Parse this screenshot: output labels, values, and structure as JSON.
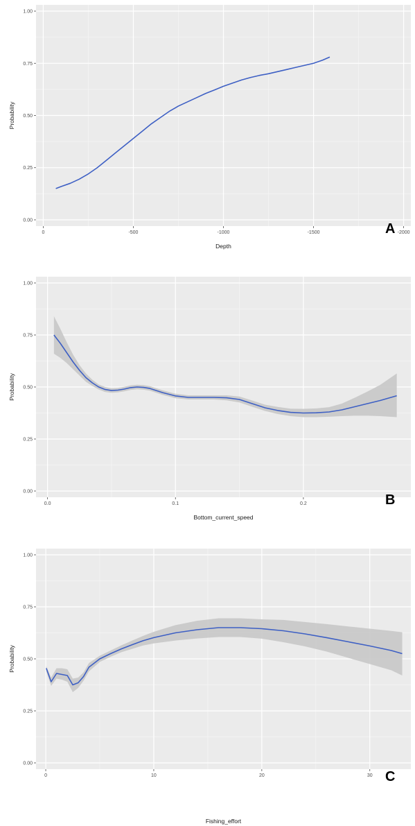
{
  "colors": {
    "panel_bg": "#ebebeb",
    "grid_major": "#ffffff",
    "grid_minor": "#f5f5f5",
    "line": "#3d5fc4",
    "ribbon": "#c8c8c8"
  },
  "chart_data": [
    {
      "type": "line",
      "panel_label": "A",
      "xlabel": "Depth",
      "ylabel": "Probability",
      "xlim": [
        40,
        -2040
      ],
      "ylim": [
        -0.03,
        1.03
      ],
      "xticks": [
        0,
        -500,
        -1000,
        -1500,
        -2000
      ],
      "xtick_labels": [
        "0",
        "-500",
        "-1000",
        "-1500",
        "-2000"
      ],
      "yticks": [
        0,
        0.25,
        0.5,
        0.75,
        1.0
      ],
      "ytick_labels": [
        "0.00",
        "0.25",
        "0.50",
        "0.75",
        "1.00"
      ],
      "x": [
        -70,
        -100,
        -150,
        -200,
        -250,
        -300,
        -350,
        -400,
        -450,
        -500,
        -550,
        -600,
        -650,
        -700,
        -750,
        -800,
        -850,
        -900,
        -950,
        -1000,
        -1050,
        -1100,
        -1150,
        -1200,
        -1250,
        -1300,
        -1350,
        -1400,
        -1450,
        -1500,
        -1550,
        -1590
      ],
      "y": [
        0.15,
        0.16,
        0.175,
        0.195,
        0.22,
        0.25,
        0.285,
        0.32,
        0.355,
        0.39,
        0.425,
        0.46,
        0.49,
        0.52,
        0.545,
        0.565,
        0.585,
        0.605,
        0.622,
        0.64,
        0.655,
        0.67,
        0.682,
        0.692,
        0.7,
        0.71,
        0.72,
        0.73,
        0.74,
        0.75,
        0.765,
        0.78
      ],
      "ribbon": false
    },
    {
      "type": "line",
      "panel_label": "B",
      "xlabel": "Bottom_current_speed",
      "ylabel": "Probability",
      "xlim": [
        -0.009,
        0.284
      ],
      "ylim": [
        -0.03,
        1.03
      ],
      "xticks": [
        0,
        0.1,
        0.2
      ],
      "xtick_labels": [
        "0.0",
        "0.1",
        "0.2"
      ],
      "yticks": [
        0,
        0.25,
        0.5,
        0.75,
        1.0
      ],
      "ytick_labels": [
        "0.00",
        "0.25",
        "0.50",
        "0.75",
        "1.00"
      ],
      "x": [
        0.005,
        0.01,
        0.015,
        0.02,
        0.025,
        0.03,
        0.035,
        0.04,
        0.045,
        0.05,
        0.055,
        0.06,
        0.065,
        0.07,
        0.075,
        0.08,
        0.085,
        0.09,
        0.095,
        0.1,
        0.11,
        0.12,
        0.13,
        0.14,
        0.15,
        0.16,
        0.17,
        0.18,
        0.19,
        0.2,
        0.21,
        0.22,
        0.23,
        0.24,
        0.25,
        0.26,
        0.273
      ],
      "y": [
        0.75,
        0.71,
        0.665,
        0.62,
        0.58,
        0.545,
        0.52,
        0.5,
        0.488,
        0.483,
        0.485,
        0.49,
        0.497,
        0.5,
        0.498,
        0.493,
        0.483,
        0.473,
        0.465,
        0.457,
        0.45,
        0.45,
        0.45,
        0.448,
        0.44,
        0.42,
        0.4,
        0.387,
        0.378,
        0.375,
        0.376,
        0.38,
        0.39,
        0.405,
        0.42,
        0.435,
        0.458
      ],
      "lower": [
        0.66,
        0.64,
        0.615,
        0.585,
        0.555,
        0.525,
        0.505,
        0.488,
        0.476,
        0.472,
        0.474,
        0.479,
        0.486,
        0.489,
        0.487,
        0.482,
        0.472,
        0.462,
        0.454,
        0.446,
        0.44,
        0.44,
        0.44,
        0.436,
        0.426,
        0.405,
        0.385,
        0.37,
        0.36,
        0.355,
        0.355,
        0.357,
        0.36,
        0.362,
        0.362,
        0.36,
        0.355
      ],
      "upper": [
        0.84,
        0.78,
        0.715,
        0.655,
        0.605,
        0.565,
        0.535,
        0.512,
        0.5,
        0.494,
        0.496,
        0.501,
        0.508,
        0.511,
        0.509,
        0.504,
        0.494,
        0.484,
        0.476,
        0.468,
        0.46,
        0.46,
        0.46,
        0.46,
        0.454,
        0.435,
        0.415,
        0.404,
        0.396,
        0.395,
        0.397,
        0.403,
        0.42,
        0.448,
        0.478,
        0.51,
        0.565
      ],
      "ribbon": true
    },
    {
      "type": "line",
      "panel_label": "C",
      "xlabel": "Fishing_effort",
      "ylabel": "Probability",
      "xlim": [
        -0.9,
        33.8
      ],
      "ylim": [
        -0.03,
        1.03
      ],
      "xticks": [
        0,
        10,
        20,
        30
      ],
      "xtick_labels": [
        "0",
        "10",
        "20",
        "30"
      ],
      "yticks": [
        0,
        0.25,
        0.5,
        0.75,
        1.0
      ],
      "ytick_labels": [
        "0.00",
        "0.25",
        "0.50",
        "0.75",
        "1.00"
      ],
      "x": [
        0.05,
        0.5,
        1.0,
        1.5,
        2.0,
        2.5,
        3.0,
        3.5,
        4.0,
        5.0,
        6.0,
        7.0,
        8.0,
        9.0,
        10.0,
        12.0,
        14.0,
        16.0,
        18.0,
        20.0,
        22.0,
        24.0,
        26.0,
        28.0,
        30.0,
        32.0,
        33.0
      ],
      "y": [
        0.455,
        0.39,
        0.43,
        0.425,
        0.42,
        0.375,
        0.385,
        0.415,
        0.46,
        0.5,
        0.525,
        0.548,
        0.568,
        0.587,
        0.602,
        0.625,
        0.64,
        0.65,
        0.65,
        0.645,
        0.635,
        0.62,
        0.602,
        0.582,
        0.562,
        0.54,
        0.525
      ],
      "lower": [
        0.44,
        0.37,
        0.405,
        0.4,
        0.39,
        0.34,
        0.36,
        0.395,
        0.44,
        0.485,
        0.51,
        0.532,
        0.548,
        0.564,
        0.574,
        0.588,
        0.598,
        0.605,
        0.605,
        0.597,
        0.58,
        0.56,
        0.535,
        0.505,
        0.475,
        0.445,
        0.42
      ],
      "upper": [
        0.465,
        0.41,
        0.455,
        0.455,
        0.45,
        0.405,
        0.41,
        0.435,
        0.48,
        0.515,
        0.54,
        0.565,
        0.588,
        0.61,
        0.63,
        0.662,
        0.683,
        0.695,
        0.695,
        0.69,
        0.687,
        0.677,
        0.667,
        0.656,
        0.645,
        0.634,
        0.628
      ],
      "ribbon": true
    }
  ]
}
